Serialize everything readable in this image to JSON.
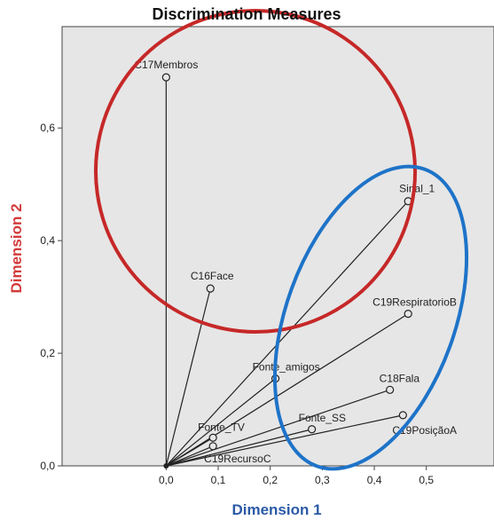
{
  "chart_data": {
    "type": "scatter",
    "title": "Discrimination Measures",
    "xlabel": "Dimension 1",
    "ylabel": "Dimension 2",
    "xlim": [
      -0.2,
      0.63
    ],
    "ylim": [
      0,
      0.78
    ],
    "x_ticks": [
      "0,0",
      "0,1",
      "0,2",
      "0,3",
      "0,4",
      "0,5"
    ],
    "y_ticks": [
      "0,0",
      "0,2",
      "0,4",
      "0,6"
    ],
    "grid": false,
    "background_color": "#e6e6e6",
    "title_color": "#111111",
    "xlabel_color": "#2b5aa6",
    "ylabel_color": "#d33b3b",
    "points": [
      {
        "label": "C17Membros",
        "x": 0.0,
        "y": 0.69
      },
      {
        "label": "C16Face",
        "x": 0.085,
        "y": 0.315
      },
      {
        "label": "Sinal_1",
        "x": 0.465,
        "y": 0.47
      },
      {
        "label": "C19RespiratorioB",
        "x": 0.465,
        "y": 0.27
      },
      {
        "label": "Fonte_amigos",
        "x": 0.21,
        "y": 0.155
      },
      {
        "label": "C18Fala",
        "x": 0.43,
        "y": 0.135
      },
      {
        "label": "C19PosiçãoA",
        "x": 0.455,
        "y": 0.09
      },
      {
        "label": "Fonte_SS",
        "x": 0.28,
        "y": 0.065
      },
      {
        "label": "Fonte_TV",
        "x": 0.09,
        "y": 0.05
      },
      {
        "label": "C19RecursoC",
        "x": 0.09,
        "y": 0.035
      }
    ],
    "annotations": [
      {
        "shape": "ellipse",
        "color": "#c62828"
      },
      {
        "shape": "ellipse",
        "color": "#1e73c8"
      }
    ]
  }
}
